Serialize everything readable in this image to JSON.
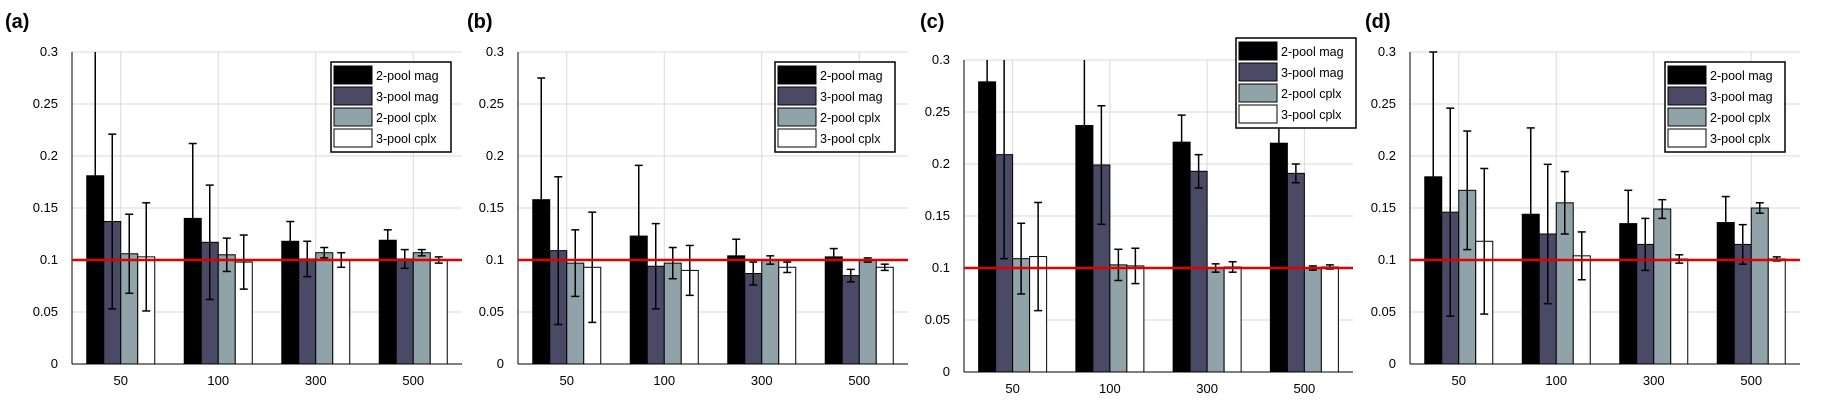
{
  "chart_data": [
    {
      "panel_label": "(a)",
      "type": "bar",
      "categories": [
        "50",
        "100",
        "300",
        "500"
      ],
      "series": [
        {
          "name": "2-pool mag",
          "values": [
            0.181,
            0.14,
            0.118,
            0.119
          ],
          "errors": [
            0.12,
            0.072,
            0.019,
            0.01
          ]
        },
        {
          "name": "3-pool mag",
          "values": [
            0.137,
            0.117,
            0.101,
            0.101
          ],
          "errors": [
            0.084,
            0.055,
            0.017,
            0.009
          ]
        },
        {
          "name": "2-pool cplx",
          "values": [
            0.106,
            0.105,
            0.107,
            0.107
          ],
          "errors": [
            0.038,
            0.016,
            0.005,
            0.003
          ]
        },
        {
          "name": "3-pool cplx",
          "values": [
            0.103,
            0.098,
            0.1,
            0.1
          ],
          "errors": [
            0.052,
            0.026,
            0.007,
            0.003
          ]
        }
      ],
      "reference_line": 0.1,
      "ylim": [
        0,
        0.3
      ],
      "yticks": [
        "0",
        "0.05",
        "0.1",
        "0.15",
        "0.2",
        "0.25",
        "0.3"
      ],
      "legend_position": "top-right",
      "grid": true
    },
    {
      "panel_label": "(b)",
      "type": "bar",
      "categories": [
        "50",
        "100",
        "300",
        "500"
      ],
      "series": [
        {
          "name": "2-pool mag",
          "values": [
            0.158,
            0.123,
            0.104,
            0.103
          ],
          "errors": [
            0.117,
            0.068,
            0.016,
            0.008
          ]
        },
        {
          "name": "3-pool mag",
          "values": [
            0.109,
            0.094,
            0.087,
            0.085
          ],
          "errors": [
            0.071,
            0.041,
            0.011,
            0.006
          ]
        },
        {
          "name": "2-pool cplx",
          "values": [
            0.097,
            0.097,
            0.1,
            0.1
          ],
          "errors": [
            0.032,
            0.015,
            0.004,
            0.002
          ]
        },
        {
          "name": "3-pool cplx",
          "values": [
            0.093,
            0.09,
            0.093,
            0.093
          ],
          "errors": [
            0.053,
            0.024,
            0.005,
            0.003
          ]
        }
      ],
      "reference_line": 0.1,
      "ylim": [
        0,
        0.3
      ],
      "yticks": [
        "0",
        "0.05",
        "0.1",
        "0.15",
        "0.2",
        "0.25",
        "0.3"
      ],
      "legend_position": "top-right",
      "grid": true
    },
    {
      "panel_label": "(c)",
      "type": "bar",
      "categories": [
        "50",
        "100",
        "300",
        "500"
      ],
      "series": [
        {
          "name": "2-pool mag",
          "values": [
            0.279,
            0.237,
            0.221,
            0.22
          ],
          "errors": [
            0.05,
            0.07,
            0.026,
            0.015
          ]
        },
        {
          "name": "3-pool mag",
          "values": [
            0.209,
            0.199,
            0.193,
            0.191
          ],
          "errors": [
            0.1,
            0.057,
            0.016,
            0.009
          ]
        },
        {
          "name": "2-pool cplx",
          "values": [
            0.109,
            0.103,
            0.1,
            0.1
          ],
          "errors": [
            0.034,
            0.015,
            0.004,
            0.002
          ]
        },
        {
          "name": "3-pool cplx",
          "values": [
            0.111,
            0.102,
            0.101,
            0.101
          ],
          "errors": [
            0.052,
            0.017,
            0.005,
            0.002
          ]
        }
      ],
      "reference_line": 0.1,
      "ylim": [
        0,
        0.3
      ],
      "yticks": [
        "0",
        "0.05",
        "0.1",
        "0.15",
        "0.2",
        "0.25",
        "0.3"
      ],
      "legend_position": "top-right",
      "grid": true
    },
    {
      "panel_label": "(d)",
      "type": "bar",
      "categories": [
        "50",
        "100",
        "300",
        "500"
      ],
      "series": [
        {
          "name": "2-pool mag",
          "values": [
            0.18,
            0.144,
            0.135,
            0.136
          ],
          "errors": [
            0.12,
            0.083,
            0.032,
            0.025
          ]
        },
        {
          "name": "3-pool mag",
          "values": [
            0.146,
            0.125,
            0.115,
            0.115
          ],
          "errors": [
            0.1,
            0.067,
            0.025,
            0.019
          ]
        },
        {
          "name": "2-pool cplx",
          "values": [
            0.167,
            0.155,
            0.149,
            0.15
          ],
          "errors": [
            0.057,
            0.03,
            0.009,
            0.005
          ]
        },
        {
          "name": "3-pool cplx",
          "values": [
            0.118,
            0.104,
            0.101,
            0.101
          ],
          "errors": [
            0.07,
            0.023,
            0.004,
            0.002
          ]
        }
      ],
      "reference_line": 0.1,
      "ylim": [
        0,
        0.3
      ],
      "yticks": [
        "0",
        "0.05",
        "0.1",
        "0.15",
        "0.2",
        "0.25",
        "0.3"
      ],
      "legend_position": "top-right",
      "grid": true
    }
  ],
  "colors": {
    "series": [
      "#000000",
      "#4a4a66",
      "#8fa3a8",
      "#ffffff"
    ],
    "reference_line": "#e00000",
    "grid": "#d9d9d9",
    "axis": "#000000",
    "text": "#000000"
  }
}
